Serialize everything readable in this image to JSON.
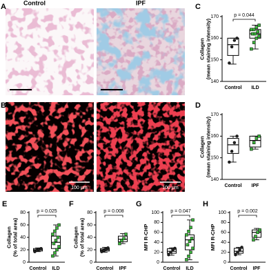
{
  "panel_labels": [
    "A",
    "B",
    "C",
    "D",
    "E",
    "F",
    "G",
    "H"
  ],
  "image_titles": [
    "Control",
    "IPF"
  ],
  "scale_labels": [
    "100 μm",
    "100 μm"
  ],
  "chart_data": [
    {
      "type": "box",
      "ylabel": [
        "Collagen",
        "(mean staining intensity)"
      ],
      "ylim": [
        140,
        170
      ],
      "yticks": [
        140,
        150,
        160,
        170
      ],
      "annotation": "p = 0.044",
      "categories": [
        "Control",
        "ILD"
      ],
      "groups": [
        {
          "color": "#222222",
          "min": 148,
          "q1": 152,
          "median": 157,
          "q3": 160,
          "max": 160,
          "points": [
            148.5,
            156,
            159,
            160
          ]
        },
        {
          "color": "#3cb43c",
          "min": 155,
          "q1": 160,
          "median": 162,
          "q3": 164,
          "max": 166,
          "points": [
            155,
            158,
            160,
            161,
            162,
            162,
            163,
            164,
            164,
            165,
            166
          ]
        }
      ]
    },
    {
      "type": "box",
      "ylabel": [
        "Collagen",
        "(mean staining intensity)"
      ],
      "ylim": [
        140,
        170
      ],
      "yticks": [
        140,
        150,
        160,
        170
      ],
      "categories": [
        "Control",
        "IPF"
      ],
      "groups": [
        {
          "color": "#222222",
          "min": 148,
          "q1": 152,
          "median": 156,
          "q3": 159,
          "max": 160,
          "points": [
            148,
            153,
            157,
            160
          ]
        },
        {
          "color": "#3cb43c",
          "min": 154,
          "q1": 155,
          "median": 158,
          "q3": 160,
          "max": 160,
          "points": [
            154,
            157,
            159,
            160
          ]
        }
      ]
    },
    {
      "type": "box",
      "ylabel": [
        "Collagen",
        "(% of total area)"
      ],
      "ylim": [
        0,
        80
      ],
      "yticks": [
        0,
        20,
        40,
        60,
        80
      ],
      "annotation": "p = 0.025",
      "categories": [
        "Control",
        "ILD"
      ],
      "groups": [
        {
          "color": "#222222",
          "min": 17,
          "q1": 18,
          "median": 20,
          "q3": 22,
          "max": 23,
          "points": [
            17,
            19,
            21,
            22
          ]
        },
        {
          "color": "#3cb43c",
          "min": 10,
          "q1": 22,
          "median": 32,
          "q3": 42,
          "max": 60,
          "points": [
            10,
            15,
            20,
            25,
            30,
            35,
            40,
            45,
            50,
            55,
            60
          ]
        }
      ]
    },
    {
      "type": "box",
      "ylabel": [
        "Collagen",
        "(% of total area)"
      ],
      "ylim": [
        0,
        80
      ],
      "yticks": [
        0,
        20,
        40,
        60,
        80
      ],
      "annotation": "p = 0.008",
      "categories": [
        "Control",
        "IPF"
      ],
      "groups": [
        {
          "color": "#222222",
          "min": 16,
          "q1": 18,
          "median": 20,
          "q3": 22,
          "max": 24,
          "points": [
            17,
            19,
            21,
            23
          ]
        },
        {
          "color": "#3cb43c",
          "min": 30,
          "q1": 33,
          "median": 37,
          "q3": 42,
          "max": 46,
          "points": [
            30,
            35,
            38,
            45
          ]
        }
      ]
    },
    {
      "type": "box",
      "ylabel": [
        "MFI R-CHP"
      ],
      "ylim": [
        0,
        100
      ],
      "yticks": [
        0,
        20,
        40,
        60,
        80,
        100
      ],
      "annotation": "p = 0.047",
      "categories": [
        "Control",
        "ILD"
      ],
      "groups": [
        {
          "color": "#222222",
          "min": 14,
          "q1": 18,
          "median": 22,
          "q3": 27,
          "max": 29,
          "points": [
            15,
            20,
            25,
            28
          ]
        },
        {
          "color": "#3cb43c",
          "min": 5,
          "q1": 25,
          "median": 45,
          "q3": 55,
          "max": 85,
          "points": [
            5,
            12,
            20,
            28,
            35,
            42,
            48,
            55,
            62,
            70,
            85
          ]
        }
      ]
    },
    {
      "type": "box",
      "ylabel": [
        "MFI R-CHP"
      ],
      "ylim": [
        0,
        100
      ],
      "yticks": [
        0,
        20,
        40,
        60,
        80,
        100
      ],
      "annotation": "p = 0.002",
      "categories": [
        "Control",
        "IPF"
      ],
      "groups": [
        {
          "color": "#222222",
          "min": 15,
          "q1": 18,
          "median": 22,
          "q3": 28,
          "max": 30,
          "points": [
            15,
            20,
            25,
            30
          ]
        },
        {
          "color": "#3cb43c",
          "min": 45,
          "q1": 50,
          "median": 60,
          "q3": 65,
          "max": 68,
          "points": [
            45,
            52,
            60,
            65
          ]
        }
      ]
    }
  ]
}
